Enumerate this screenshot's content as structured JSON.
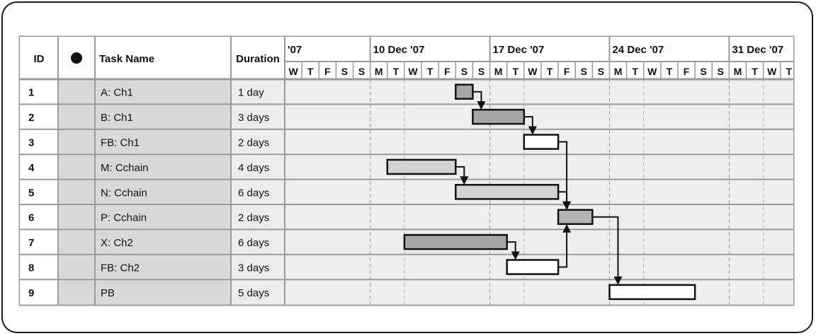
{
  "chart_data": {
    "type": "gantt",
    "columns": {
      "id": "ID",
      "info": "i",
      "task_name": "Task Name",
      "duration": "Duration"
    },
    "timescale": {
      "weeks": [
        "'07",
        "10 Dec '07",
        "17 Dec '07",
        "24 Dec '07",
        "31 Dec '07"
      ],
      "days": [
        "W",
        "T",
        "F",
        "S",
        "S",
        "M",
        "T",
        "W",
        "T",
        "F",
        "S",
        "S",
        "M",
        "T",
        "W",
        "T",
        "F",
        "S",
        "S",
        "M",
        "T",
        "W",
        "T",
        "F",
        "S",
        "S",
        "M",
        "T",
        "W",
        "T"
      ]
    },
    "tasks": [
      {
        "id": "1",
        "name": "A: Ch1",
        "duration": "1 day",
        "start": 10,
        "days": 1,
        "fill": "#a6a6a6"
      },
      {
        "id": "2",
        "name": "B: Ch1",
        "duration": "3 days",
        "start": 11,
        "days": 3,
        "fill": "#a6a6a6"
      },
      {
        "id": "3",
        "name": "FB: Ch1",
        "duration": "2 days",
        "start": 14,
        "days": 2,
        "fill": "#ffffff"
      },
      {
        "id": "4",
        "name": "M: Cchain",
        "duration": "4 days",
        "start": 6,
        "days": 4,
        "fill": "#d2d2d2"
      },
      {
        "id": "5",
        "name": "N: Cchain",
        "duration": "6 days",
        "start": 10,
        "days": 6,
        "fill": "#d2d2d2"
      },
      {
        "id": "6",
        "name": "P: Cchain",
        "duration": "2 days",
        "start": 16,
        "days": 2,
        "fill": "#b4b4b4"
      },
      {
        "id": "7",
        "name": "X: Ch2",
        "duration": "6 days",
        "start": 7,
        "days": 6,
        "fill": "#a6a6a6"
      },
      {
        "id": "8",
        "name": "FB: Ch2",
        "duration": "3 days",
        "start": 13,
        "days": 3,
        "fill": "#ffffff"
      },
      {
        "id": "9",
        "name": "PB",
        "duration": "5 days",
        "start": 19,
        "days": 5,
        "fill": "#ffffff"
      }
    ],
    "links": [
      {
        "from": 0,
        "to": 1,
        "kind": "down"
      },
      {
        "from": 1,
        "to": 2,
        "kind": "down"
      },
      {
        "from": 3,
        "to": 4,
        "kind": "down"
      },
      {
        "from": 2,
        "to": 5,
        "kind": "down"
      },
      {
        "from": 4,
        "to": 5,
        "kind": "down"
      },
      {
        "from": 6,
        "to": 7,
        "kind": "down"
      },
      {
        "from": 7,
        "to": 5,
        "kind": "up"
      },
      {
        "from": 5,
        "to": 8,
        "kind": "down"
      }
    ]
  }
}
